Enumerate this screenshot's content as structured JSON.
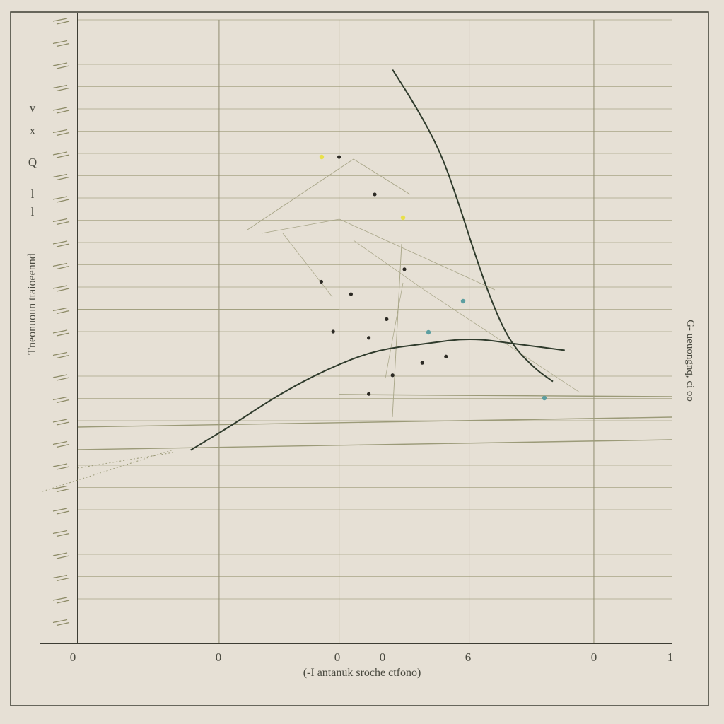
{
  "chart_data": {
    "type": "line",
    "title": "",
    "xlabel": "(-I antanuk sroche ctfono)",
    "ylabel": "Tneonuoun ttaioeennd",
    "right_label": "G- ueuongnq, ci oo",
    "x_tick_labels": [
      "0",
      "0",
      "0",
      "0",
      "6",
      "0",
      "1"
    ],
    "y_tick_labels": [
      "v",
      "x",
      "Q",
      "l",
      "l"
    ],
    "colors": {
      "background": "#e6e0d5",
      "grid": "#b8b49a",
      "axis": "#3d3d33",
      "curve": "#2f3b2c",
      "thin_line": "#9b9a78",
      "dot": "#2c2a24",
      "accent_yellow": "#e8e04a",
      "accent_teal": "#5c9ea0"
    },
    "grid": true,
    "series": [
      {
        "x": [
          0.19,
          0.26,
          0.34,
          0.42,
          0.5,
          0.58,
          0.66,
          0.74,
          0.82
        ],
        "y": [
          0.31,
          0.35,
          0.4,
          0.44,
          0.47,
          0.48,
          0.49,
          0.48,
          0.47
        ]
      },
      {
        "x": [
          0.53,
          0.57,
          0.61,
          0.64,
          0.67,
          0.7,
          0.73,
          0.77,
          0.8
        ],
        "y": [
          0.92,
          0.86,
          0.79,
          0.71,
          0.62,
          0.54,
          0.48,
          0.44,
          0.42
        ]
      }
    ],
    "points": [
      {
        "x": 0.44,
        "y": 0.78
      },
      {
        "x": 0.5,
        "y": 0.72
      },
      {
        "x": 0.55,
        "y": 0.6
      },
      {
        "x": 0.41,
        "y": 0.58
      },
      {
        "x": 0.46,
        "y": 0.56
      },
      {
        "x": 0.52,
        "y": 0.52
      },
      {
        "x": 0.43,
        "y": 0.5
      },
      {
        "x": 0.49,
        "y": 0.49
      },
      {
        "x": 0.62,
        "y": 0.46
      },
      {
        "x": 0.58,
        "y": 0.45
      },
      {
        "x": 0.53,
        "y": 0.43
      },
      {
        "x": 0.49,
        "y": 0.4
      }
    ]
  }
}
